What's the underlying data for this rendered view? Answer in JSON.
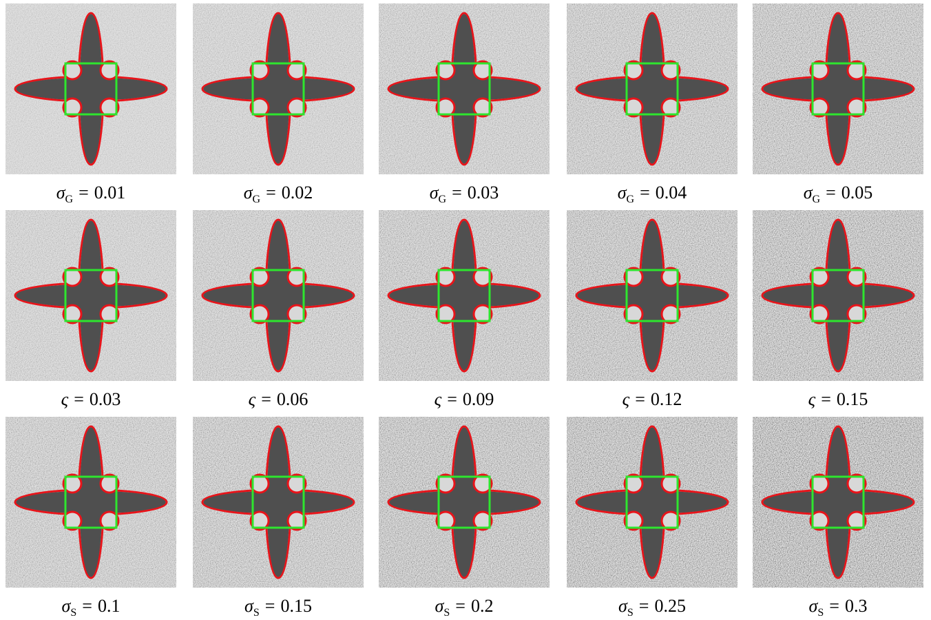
{
  "figure": {
    "rows": [
      {
        "panels": [
          {
            "symbol": "σ",
            "subscript": "G",
            "operator": "=",
            "value": "0.01"
          },
          {
            "symbol": "σ",
            "subscript": "G",
            "operator": "=",
            "value": "0.02"
          },
          {
            "symbol": "σ",
            "subscript": "G",
            "operator": "=",
            "value": "0.03"
          },
          {
            "symbol": "σ",
            "subscript": "G",
            "operator": "=",
            "value": "0.04"
          },
          {
            "symbol": "σ",
            "subscript": "G",
            "operator": "=",
            "value": "0.05"
          }
        ]
      },
      {
        "panels": [
          {
            "symbol": "ς",
            "operator": "=",
            "value": "0.03"
          },
          {
            "symbol": "ς",
            "operator": "=",
            "value": "0.06"
          },
          {
            "symbol": "ς",
            "operator": "=",
            "value": "0.09"
          },
          {
            "symbol": "ς",
            "operator": "=",
            "value": "0.12"
          },
          {
            "symbol": "ς",
            "operator": "=",
            "value": "0.15"
          }
        ]
      },
      {
        "panels": [
          {
            "symbol": "σ",
            "subscript": "S",
            "operator": "=",
            "value": "0.1"
          },
          {
            "symbol": "σ",
            "subscript": "S",
            "operator": "=",
            "value": "0.15"
          },
          {
            "symbol": "σ",
            "subscript": "S",
            "operator": "=",
            "value": "0.2"
          },
          {
            "symbol": "σ",
            "subscript": "S",
            "operator": "=",
            "value": "0.25"
          },
          {
            "symbol": "σ",
            "subscript": "S",
            "operator": "=",
            "value": "0.3"
          }
        ]
      }
    ]
  }
}
